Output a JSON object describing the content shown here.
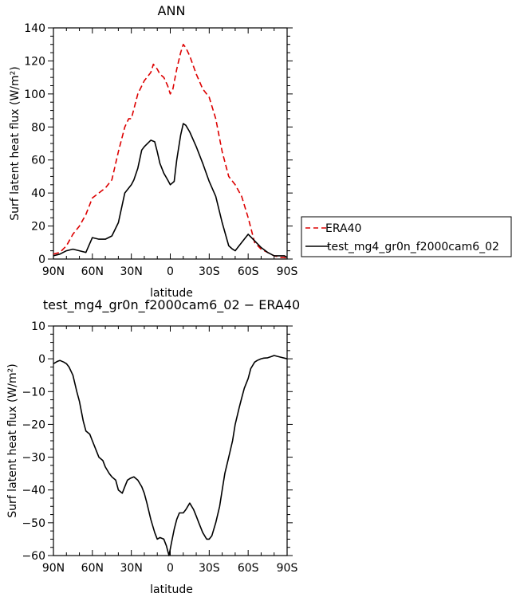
{
  "chart_data": [
    {
      "type": "line",
      "title": "ANN",
      "xlabel": "latitude",
      "ylabel": "Surf latent heat flux (W/m²)",
      "xlim": [
        90,
        -90
      ],
      "ylim": [
        0,
        140
      ],
      "x_ticks": [
        90,
        60,
        30,
        0,
        -30,
        -60,
        -90
      ],
      "x_tick_labels": [
        "90N",
        "60N",
        "30N",
        "0",
        "30S",
        "60S",
        "90S"
      ],
      "y_ticks": [
        0,
        20,
        40,
        60,
        80,
        100,
        120,
        140
      ],
      "y_tick_labels": [
        "0",
        "20",
        "40",
        "60",
        "80",
        "100",
        "120",
        "140"
      ],
      "grid": false,
      "legend_position": "right, outside plot",
      "series": [
        {
          "name": "ERA40",
          "color": "#dd0000",
          "style": "dashed",
          "x": [
            90,
            85,
            80,
            75,
            70,
            65,
            60,
            55,
            50,
            45,
            40,
            35,
            32,
            30,
            25,
            20,
            15,
            13,
            10,
            8,
            5,
            2,
            0,
            -2,
            -5,
            -8,
            -10,
            -12,
            -15,
            -20,
            -25,
            -30,
            -35,
            -40,
            -45,
            -50,
            -55,
            -60,
            -65,
            -70,
            -75,
            -80,
            -85,
            -88,
            -90
          ],
          "y": [
            3,
            4,
            8,
            15,
            20,
            27,
            37,
            40,
            43,
            48,
            65,
            80,
            85,
            85,
            100,
            108,
            113,
            118,
            115,
            112,
            110,
            105,
            100,
            103,
            115,
            125,
            130,
            128,
            123,
            112,
            103,
            98,
            85,
            65,
            50,
            45,
            38,
            25,
            10,
            6,
            4,
            2,
            1,
            1,
            0
          ]
        },
        {
          "name": "test_mg4_gr0n_f2000cam6_02",
          "color": "#000000",
          "style": "solid",
          "x": [
            90,
            85,
            80,
            75,
            70,
            65,
            60,
            55,
            50,
            45,
            40,
            35,
            30,
            28,
            25,
            22,
            20,
            15,
            12,
            10,
            8,
            5,
            2,
            0,
            -3,
            -5,
            -8,
            -10,
            -12,
            -15,
            -20,
            -25,
            -30,
            -35,
            -40,
            -45,
            -48,
            -50,
            -55,
            -60,
            -65,
            -70,
            -75,
            -80,
            -85,
            -88,
            -90
          ],
          "y": [
            2,
            3,
            5,
            6,
            5,
            4,
            13,
            12,
            12,
            14,
            22,
            40,
            45,
            48,
            55,
            66,
            68,
            72,
            71,
            65,
            58,
            52,
            48,
            45,
            47,
            60,
            75,
            82,
            81,
            77,
            68,
            58,
            47,
            38,
            22,
            8,
            6,
            5,
            10,
            15,
            11,
            7,
            4,
            2,
            2,
            2,
            1
          ]
        }
      ]
    },
    {
      "type": "line",
      "title": "test_mg4_gr0n_f2000cam6_02 − ERA40",
      "xlabel": "latitude",
      "ylabel": "Surf latent heat flux (W/m²)",
      "xlim": [
        90,
        -90
      ],
      "ylim": [
        -60,
        10
      ],
      "x_ticks": [
        90,
        60,
        30,
        0,
        -30,
        -60,
        -90
      ],
      "x_tick_labels": [
        "90N",
        "60N",
        "30N",
        "0",
        "30S",
        "60S",
        "90S"
      ],
      "y_ticks": [
        -60,
        -50,
        -40,
        -30,
        -20,
        -10,
        0,
        10
      ],
      "y_tick_labels": [
        "−60",
        "−50",
        "−40",
        "−30",
        "−20",
        "−10",
        "0",
        "10"
      ],
      "grid": false,
      "series": [
        {
          "name": "test_mg4_gr0n_f2000cam6_02 − ERA40",
          "color": "#000000",
          "style": "solid",
          "x": [
            90,
            87,
            85,
            82,
            80,
            78,
            75,
            72,
            70,
            67,
            65,
            62,
            60,
            57,
            55,
            52,
            50,
            47,
            45,
            42,
            40,
            37,
            35,
            33,
            31,
            28,
            25,
            22,
            20,
            18,
            15,
            12,
            10,
            8,
            5,
            3,
            1,
            -1,
            -3,
            -5,
            -7,
            -8,
            -10,
            -12,
            -15,
            -18,
            -20,
            -22,
            -25,
            -28,
            -30,
            -32,
            -35,
            -38,
            -40,
            -42,
            -45,
            -48,
            -50,
            -53,
            -55,
            -57,
            -60,
            -62,
            -65,
            -67,
            -70,
            -72,
            -75,
            -78,
            -80,
            -82,
            -85,
            -88,
            -90
          ],
          "y": [
            -1.5,
            -0.8,
            -0.5,
            -1,
            -1.5,
            -2.5,
            -5,
            -10,
            -13,
            -19,
            -22,
            -23,
            -25,
            -28,
            -30,
            -31,
            -33,
            -35,
            -36,
            -37,
            -40,
            -41,
            -39,
            -37,
            -36.5,
            -36,
            -37,
            -39,
            -41,
            -44,
            -49,
            -53,
            -55,
            -54.5,
            -55,
            -57,
            -60,
            -56,
            -52,
            -49,
            -47,
            -47,
            -47,
            -46,
            -44,
            -46,
            -48,
            -50,
            -53,
            -55,
            -55,
            -54,
            -50,
            -45,
            -40,
            -35,
            -30,
            -25,
            -20,
            -15,
            -12,
            -9,
            -6,
            -3,
            -1,
            -0.5,
            0,
            0.2,
            0.3,
            0.7,
            1,
            0.8,
            0.5,
            0.2,
            0
          ]
        }
      ]
    }
  ]
}
